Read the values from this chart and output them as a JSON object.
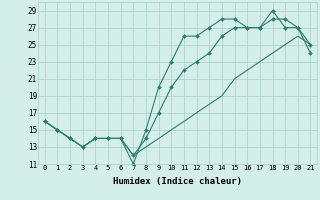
{
  "xlabel": "Humidex (Indice chaleur)",
  "x": [
    0,
    1,
    2,
    3,
    4,
    5,
    6,
    7,
    8,
    9,
    10,
    11,
    12,
    13,
    14,
    15,
    16,
    17,
    18,
    19,
    20,
    21
  ],
  "line1": [
    16,
    15,
    14,
    13,
    14,
    14,
    14,
    11,
    15,
    20,
    23,
    26,
    26,
    27,
    28,
    28,
    27,
    27,
    29,
    27,
    27,
    25
  ],
  "line2": [
    16,
    15,
    14,
    13,
    14,
    14,
    14,
    12,
    14,
    17,
    20,
    22,
    23,
    24,
    26,
    27,
    27,
    27,
    28,
    28,
    27,
    24
  ],
  "line3": [
    16,
    15,
    14,
    13,
    14,
    14,
    14,
    12,
    13,
    14,
    15,
    16,
    17,
    18,
    19,
    21,
    22,
    23,
    24,
    25,
    26,
    25
  ],
  "line_color": "#2e7d6e",
  "bg_color": "#d4eeea",
  "grid_color": "#aacfc9",
  "ylim": [
    11,
    30
  ],
  "yticks": [
    11,
    13,
    15,
    17,
    19,
    21,
    23,
    25,
    27,
    29
  ],
  "xlim": [
    -0.5,
    21.5
  ],
  "xticks": [
    0,
    1,
    2,
    3,
    4,
    5,
    6,
    7,
    8,
    9,
    10,
    11,
    12,
    13,
    14,
    15,
    16,
    17,
    18,
    19,
    20,
    21
  ],
  "markersize": 2.0,
  "linewidth": 0.8
}
